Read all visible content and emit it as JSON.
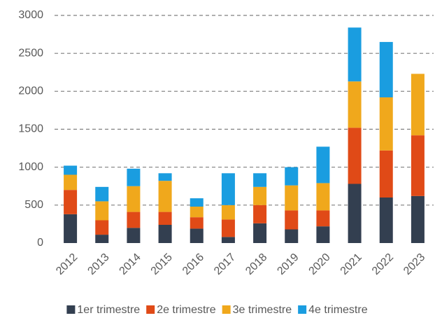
{
  "chart_data": {
    "type": "stacked_bar",
    "categories": [
      "2012",
      "2013",
      "2014",
      "2015",
      "2016",
      "2017",
      "2018",
      "2019",
      "2020",
      "2021",
      "2022",
      "2023"
    ],
    "series": [
      {
        "name": "1er trimestre",
        "color": "#333f50",
        "values": [
          380,
          110,
          200,
          240,
          190,
          80,
          260,
          180,
          220,
          780,
          600,
          620
        ]
      },
      {
        "name": "2e trimestre",
        "color": "#e04a17",
        "values": [
          320,
          190,
          210,
          170,
          150,
          230,
          240,
          250,
          210,
          740,
          620,
          800
        ]
      },
      {
        "name": "3e trimestre",
        "color": "#f0a81c",
        "values": [
          200,
          250,
          340,
          410,
          140,
          190,
          240,
          330,
          360,
          610,
          700,
          810
        ]
      },
      {
        "name": "4e trimestre",
        "color": "#1a9de0",
        "values": [
          120,
          190,
          230,
          100,
          110,
          420,
          180,
          240,
          480,
          710,
          730,
          null
        ]
      }
    ],
    "ylim": [
      0,
      3000
    ],
    "yticks": [
      0,
      500,
      1000,
      1500,
      2000,
      2500,
      3000
    ],
    "grid": true,
    "legend": "bottom"
  }
}
